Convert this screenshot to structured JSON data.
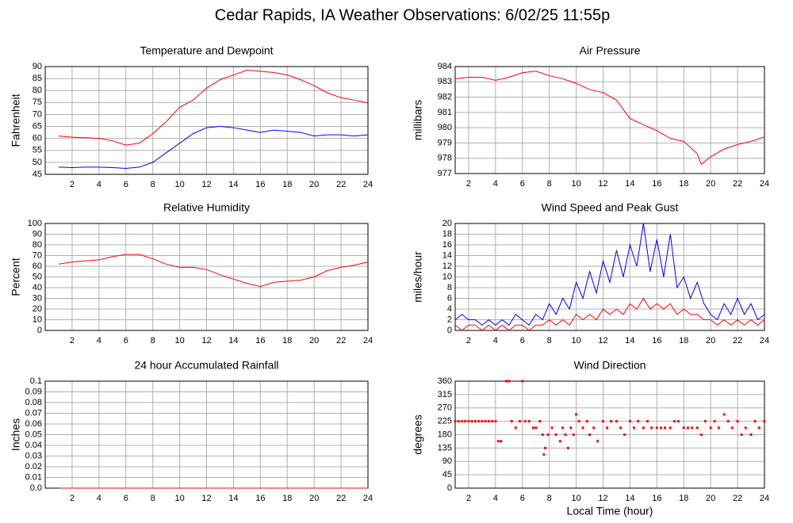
{
  "title": "Cedar Rapids, IA Weather Observations: 6/02/25 11:55p",
  "chart_data": [
    {
      "type": "line",
      "title": "Temperature and Dewpoint",
      "ylabel": "Fahrenheit",
      "x": [
        1,
        2,
        3,
        4,
        5,
        6,
        7,
        8,
        9,
        10,
        11,
        12,
        13,
        14,
        15,
        16,
        17,
        18,
        19,
        20,
        21,
        22,
        23,
        24
      ],
      "series": [
        {
          "color": "#ff0000",
          "values": [
            61,
            60.5,
            60.3,
            60,
            59,
            57.2,
            58,
            62,
            67,
            73,
            76,
            81,
            84.5,
            86.5,
            88.5,
            88,
            87.5,
            86.5,
            84.5,
            82,
            79,
            77,
            76,
            74.8
          ]
        },
        {
          "color": "#0000ff",
          "values": [
            48,
            47.8,
            48,
            48,
            47.8,
            47.5,
            48,
            50,
            54,
            58,
            62,
            64.5,
            65,
            64.5,
            63.5,
            62.5,
            63.5,
            63,
            62.5,
            61,
            61.5,
            61.5,
            61,
            61.5
          ]
        }
      ],
      "xlim": [
        0,
        24
      ],
      "xticks": [
        2,
        4,
        6,
        8,
        10,
        12,
        14,
        16,
        18,
        20,
        22,
        24
      ],
      "ylim": [
        45,
        90
      ],
      "yticks": [
        45,
        50,
        55,
        60,
        65,
        70,
        75,
        80,
        85,
        90
      ],
      "grid": true
    },
    {
      "type": "line",
      "title": "Air Pressure",
      "ylabel": "millibars",
      "x": [
        1,
        2,
        3,
        4,
        5,
        6,
        7,
        8,
        9,
        10,
        11,
        12,
        13,
        14,
        15,
        16,
        17,
        18,
        19,
        19.3,
        20,
        21,
        22,
        23,
        24
      ],
      "series": [
        {
          "color": "#ff0000",
          "values": [
            983.2,
            983.3,
            983.3,
            983.1,
            983.3,
            983.6,
            983.7,
            983.4,
            983.2,
            982.9,
            982.5,
            982.3,
            981.8,
            980.6,
            980.2,
            979.8,
            979.3,
            979.1,
            978.3,
            977.6,
            978.1,
            978.6,
            978.9,
            979.1,
            979.4
          ]
        }
      ],
      "xlim": [
        1,
        24
      ],
      "xticks": [
        2,
        4,
        6,
        8,
        10,
        12,
        14,
        16,
        18,
        20,
        22,
        24
      ],
      "ylim": [
        977,
        984
      ],
      "yticks": [
        977,
        978,
        979,
        980,
        981,
        982,
        983,
        984
      ],
      "grid": true
    },
    {
      "type": "line",
      "title": "Relative Humidity",
      "ylabel": "Percent",
      "x": [
        1,
        2,
        3,
        4,
        5,
        6,
        7,
        8,
        9,
        10,
        11,
        12,
        13,
        14,
        15,
        16,
        17,
        18,
        19,
        20,
        21,
        22,
        23,
        24
      ],
      "series": [
        {
          "color": "#ff0000",
          "values": [
            62,
            64,
            65,
            66,
            69,
            71,
            71,
            67,
            62,
            59,
            59,
            57,
            52,
            48,
            44,
            41,
            45,
            46,
            47,
            50,
            56,
            59,
            61,
            64
          ]
        }
      ],
      "xlim": [
        0,
        24
      ],
      "xticks": [
        2,
        4,
        6,
        8,
        10,
        12,
        14,
        16,
        18,
        20,
        22,
        24
      ],
      "ylim": [
        0,
        100
      ],
      "yticks": [
        0,
        10,
        20,
        30,
        40,
        50,
        60,
        70,
        80,
        90,
        100
      ],
      "grid": true
    },
    {
      "type": "line",
      "title": "Wind Speed and Peak Gust",
      "ylabel": "miles/hour",
      "x": [
        1,
        1.5,
        2,
        2.5,
        3,
        3.5,
        4,
        4.5,
        5,
        5.5,
        6,
        6.5,
        7,
        7.5,
        8,
        8.5,
        9,
        9.5,
        10,
        10.5,
        11,
        11.5,
        12,
        12.5,
        13,
        13.5,
        14,
        14.5,
        15,
        15.5,
        16,
        16.5,
        17,
        17.5,
        18,
        18.5,
        19,
        19.5,
        20,
        20.5,
        21,
        21.5,
        22,
        22.5,
        23,
        23.5,
        24
      ],
      "series": [
        {
          "color": "#0000ff",
          "values": [
            2,
            3,
            2,
            2,
            1,
            2,
            1,
            2,
            1,
            3,
            2,
            1,
            3,
            2,
            5,
            3,
            6,
            4,
            9,
            6,
            11,
            7,
            13,
            9,
            15,
            10,
            16,
            12,
            20,
            11,
            17,
            10,
            18,
            8,
            10,
            6,
            9,
            5,
            3,
            2,
            5,
            3,
            6,
            3,
            5,
            2,
            3
          ]
        },
        {
          "color": "#ff0000",
          "values": [
            1,
            0,
            1,
            1,
            0,
            1,
            0,
            1,
            0,
            1,
            1,
            0,
            1,
            1,
            2,
            1,
            2,
            1,
            3,
            2,
            3,
            2,
            4,
            3,
            4,
            3,
            5,
            4,
            6,
            4,
            5,
            4,
            5,
            3,
            4,
            3,
            3,
            2,
            2,
            1,
            2,
            1,
            2,
            1,
            2,
            1,
            2
          ]
        }
      ],
      "xlim": [
        1,
        24
      ],
      "xticks": [
        2,
        4,
        6,
        8,
        10,
        12,
        14,
        16,
        18,
        20,
        22,
        24
      ],
      "ylim": [
        0,
        20
      ],
      "yticks": [
        0,
        2,
        4,
        6,
        8,
        10,
        12,
        14,
        16,
        18,
        20
      ],
      "grid": true
    },
    {
      "type": "line",
      "title": "24 hour Accumulated Rainfall",
      "ylabel": "Inches",
      "x": [
        1,
        24
      ],
      "series": [
        {
          "color": "#ff0000",
          "values": [
            0,
            0
          ]
        }
      ],
      "xlim": [
        0,
        24
      ],
      "xticks": [
        2,
        4,
        6,
        8,
        10,
        12,
        14,
        16,
        18,
        20,
        22,
        24
      ],
      "ylim": [
        0,
        0.1
      ],
      "yticks": [
        {
          "value": 0,
          "label": "0.0"
        },
        0.01,
        0.02,
        0.03,
        0.04,
        0.05,
        0.06,
        0.07,
        0.08,
        0.09,
        {
          "value": 0.1,
          "label": "0.1"
        }
      ],
      "grid": true
    },
    {
      "type": "scatter",
      "title": "Wind Direction",
      "ylabel": "degrees",
      "xlabel": "Local Time (hour)",
      "x": [
        1,
        1.25,
        1.5,
        1.75,
        2,
        2.25,
        2.5,
        2.75,
        3,
        3.25,
        3.5,
        3.75,
        4,
        4.2,
        4.4,
        4.8,
        5,
        5.2,
        5.5,
        5.8,
        6,
        6.2,
        6.5,
        6.8,
        7,
        7.3,
        7.5,
        7.6,
        7.7,
        7.9,
        8.2,
        8.5,
        8.8,
        9,
        9.2,
        9.4,
        9.6,
        9.8,
        10,
        10.2,
        10.5,
        10.8,
        11,
        11.3,
        11.6,
        12,
        12.3,
        12.6,
        13,
        13.3,
        13.6,
        14,
        14.3,
        14.6,
        15,
        15.3,
        15.6,
        16,
        16.3,
        16.6,
        17,
        17.3,
        17.6,
        18,
        18.3,
        18.6,
        19,
        19.3,
        19.6,
        20,
        20.3,
        20.6,
        21,
        21.3,
        21.6,
        22,
        22.3,
        22.6,
        23,
        23.3,
        23.6,
        24
      ],
      "series": [
        {
          "color": "#ff0000",
          "values": [
            225,
            225,
            225,
            225,
            225,
            225,
            225,
            225,
            225,
            225,
            225,
            225,
            225,
            158,
            158,
            360,
            360,
            225,
            203,
            225,
            360,
            225,
            225,
            203,
            203,
            225,
            180,
            113,
            135,
            180,
            203,
            180,
            158,
            203,
            180,
            135,
            203,
            180,
            248,
            225,
            203,
            225,
            180,
            203,
            158,
            225,
            203,
            225,
            225,
            203,
            180,
            225,
            203,
            225,
            203,
            225,
            203,
            203,
            203,
            203,
            203,
            225,
            225,
            203,
            203,
            203,
            203,
            180,
            225,
            203,
            225,
            203,
            248,
            225,
            203,
            225,
            180,
            203,
            180,
            225,
            203,
            225
          ]
        }
      ],
      "xlim": [
        1,
        24
      ],
      "xticks": [
        2,
        4,
        6,
        8,
        10,
        12,
        14,
        16,
        18,
        20,
        22,
        24
      ],
      "ylim": [
        0,
        360
      ],
      "yticks": [
        0,
        45,
        90,
        135,
        180,
        225,
        270,
        315,
        360
      ],
      "grid": true
    }
  ]
}
